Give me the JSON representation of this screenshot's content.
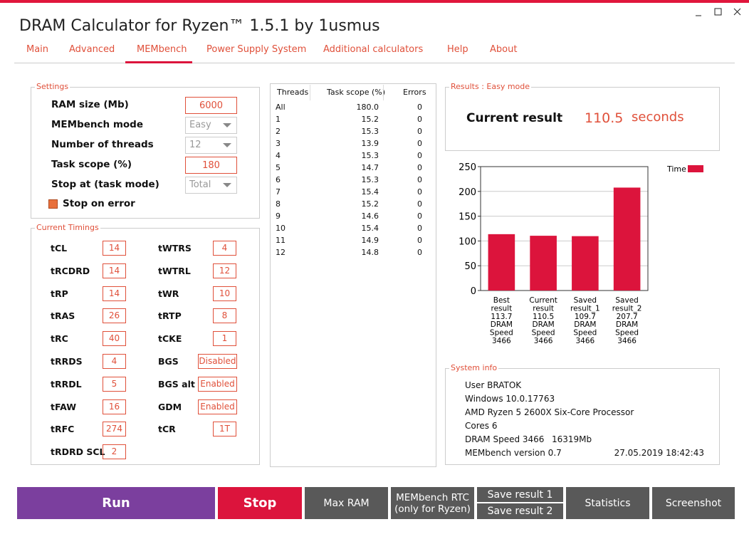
{
  "window": {
    "title": "DRAM Calculator for Ryzen™ 1.5.1 by 1usmus"
  },
  "tabs": [
    "Main",
    "Advanced",
    "MEMbench",
    "Power Supply System",
    "Additional calculators",
    "Help",
    "About"
  ],
  "settings": {
    "title": "Settings",
    "rows": [
      {
        "label": "RAM size (Mb)",
        "value": 6000
      },
      {
        "label": "MEMbench mode",
        "value": "Easy"
      },
      {
        "label": "Number of threads",
        "value": 12
      },
      {
        "label": "Task scope (%)",
        "value": 180
      },
      {
        "label": "Stop at (task mode)",
        "value": "Total"
      }
    ],
    "checkbox": "Stop on error"
  },
  "timings": {
    "title": "Current Timings",
    "left": [
      [
        "tCL",
        14
      ],
      [
        "tRCDRD",
        14
      ],
      [
        "tRP",
        14
      ],
      [
        "tRAS",
        26
      ],
      [
        "tRC",
        40
      ],
      [
        "tRRDS",
        4
      ],
      [
        "tRRDL",
        5
      ],
      [
        "tFAW",
        16
      ],
      [
        "tRFC",
        274
      ],
      [
        "tRDRD SCL",
        2
      ]
    ],
    "right": [
      [
        "tWTRS",
        4
      ],
      [
        "tWTRL",
        12
      ],
      [
        "tWR",
        10
      ],
      [
        "tRTP",
        8
      ],
      [
        "tCKE",
        1
      ],
      [
        "BGS",
        "Disabled"
      ],
      [
        "BGS alt",
        "Enabled"
      ],
      [
        "GDM",
        "Enabled"
      ],
      [
        "tCR",
        "1T"
      ]
    ]
  },
  "threads_table": {
    "headers": [
      "Threads",
      "Task scope (%)",
      "Errors"
    ],
    "rows": [
      [
        "All",
        "180.0",
        "0"
      ],
      [
        "1",
        "15.2",
        "0"
      ],
      [
        "2",
        "15.3",
        "0"
      ],
      [
        "3",
        "13.9",
        "0"
      ],
      [
        "4",
        "15.3",
        "0"
      ],
      [
        "5",
        "14.7",
        "0"
      ],
      [
        "6",
        "15.3",
        "0"
      ],
      [
        "7",
        "15.4",
        "0"
      ],
      [
        "8",
        "15.2",
        "0"
      ],
      [
        "9",
        "14.6",
        "0"
      ],
      [
        "10",
        "15.4",
        "0"
      ],
      [
        "11",
        "14.9",
        "0"
      ],
      [
        "12",
        "14.8",
        "0"
      ]
    ]
  },
  "results": {
    "title": "Results : Easy mode",
    "label": "Current result",
    "value": "110.5",
    "unit": "seconds"
  },
  "chart_data": {
    "type": "bar",
    "categories": [
      [
        "Best",
        "result",
        "113.7",
        "DRAM",
        "Speed",
        "3466"
      ],
      [
        "Current",
        "result",
        "110.5",
        "DRAM",
        "Speed",
        "3466"
      ],
      [
        "Saved",
        "result_1",
        "109.7",
        "DRAM",
        "Speed",
        "3466"
      ],
      [
        "Saved",
        "result_2",
        "207.7",
        "DRAM",
        "Speed",
        "3466"
      ]
    ],
    "series": [
      {
        "name": "Time",
        "color": "#dc143c",
        "values": [
          113.7,
          110.5,
          109.7,
          207.7
        ]
      }
    ],
    "ylim": [
      0,
      250
    ],
    "yticks": [
      0,
      50,
      100,
      150,
      200,
      250
    ],
    "grid": true,
    "legend": "top-right"
  },
  "system_info": {
    "title": "System info",
    "lines": [
      "User BRATOK",
      "Windows 10.0.17763",
      "AMD Ryzen 5 2600X Six-Core Processor",
      "Cores 6"
    ],
    "dram_speed": "DRAM Speed 3466",
    "memory": "16319Mb",
    "version": "MEMbench version 0.7",
    "date": "27.05.2019 18:42:43"
  },
  "buttons": {
    "run": "Run",
    "stop": "Stop",
    "max_ram": "Max RAM",
    "rtc": [
      "MEMbench RTC",
      "(only for Ryzen)"
    ],
    "save1": "Save result 1",
    "save2": "Save result 2",
    "statistics": "Statistics",
    "screenshot": "Screenshot"
  }
}
